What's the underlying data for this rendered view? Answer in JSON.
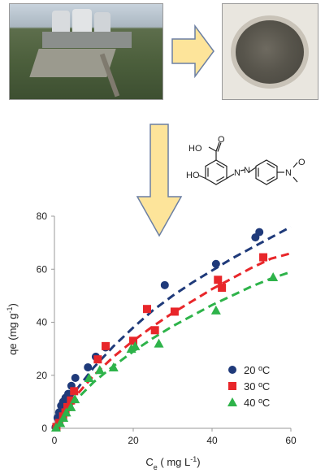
{
  "photos": {
    "plant": "power-plant-aerial-photo",
    "sample": "fly-ash-powder-dish-photo"
  },
  "molecule": {
    "labels": [
      "HO",
      "O",
      "HO",
      "N",
      "N",
      "N",
      "O"
    ],
    "label_text": {
      "oh_acid": "HO",
      "o_carbonyl": "O",
      "oh_phenol": "HO",
      "n_azo1": "N",
      "n_azo2": "N",
      "n_nitro": "N",
      "o_nitro": "O"
    }
  },
  "colors": {
    "arrow_fill": "#fde49a",
    "arrow_stroke": "#6b7fa3",
    "series_20": "#1f3a7a",
    "series_30": "#e8262a",
    "series_40": "#2eb34a"
  },
  "chart_data": {
    "type": "scatter",
    "xlabel": "Ce ( mg L-1)",
    "xlabel_main": "C",
    "xlabel_sub": "e",
    "xlabel_tail": " ( mg L",
    "xlabel_sup": "-1",
    "xlabel_end": ")",
    "ylabel": "qe (mg g-1)",
    "ylabel_main": "qe (mg g",
    "ylabel_sup": "-1",
    "ylabel_end": ")",
    "xlim": [
      0,
      60
    ],
    "ylim": [
      0,
      80
    ],
    "xticks": [
      "0",
      "20",
      "40",
      "60"
    ],
    "yticks": [
      "0",
      "20",
      "40",
      "60",
      "80"
    ],
    "grid": false,
    "legend_position": "bottom-right",
    "series": [
      {
        "name": "20 ºC",
        "marker": "circle",
        "points": [
          [
            0.3,
            0.5
          ],
          [
            0.8,
            4
          ],
          [
            1.2,
            6
          ],
          [
            1.7,
            8.5
          ],
          [
            2.2,
            10
          ],
          [
            2.8,
            11.5
          ],
          [
            3.5,
            13
          ],
          [
            4.3,
            16
          ],
          [
            5.3,
            19
          ],
          [
            8.5,
            23
          ],
          [
            10.5,
            27
          ],
          [
            13,
            30.5
          ],
          [
            28,
            54
          ],
          [
            41,
            62
          ],
          [
            51,
            72
          ],
          [
            52,
            74
          ]
        ],
        "fit": [
          [
            0.5,
            1.5
          ],
          [
            2,
            6
          ],
          [
            5,
            13.5
          ],
          [
            10,
            23
          ],
          [
            15,
            31
          ],
          [
            20,
            38
          ],
          [
            25,
            44.5
          ],
          [
            30,
            50
          ],
          [
            35,
            55
          ],
          [
            40,
            59.5
          ],
          [
            45,
            64
          ],
          [
            50,
            68
          ],
          [
            55,
            72
          ],
          [
            60,
            76
          ]
        ]
      },
      {
        "name": "30 ºC",
        "marker": "square",
        "points": [
          [
            0.5,
            0.5
          ],
          [
            1.2,
            2
          ],
          [
            2.2,
            4.5
          ],
          [
            2.8,
            6
          ],
          [
            3.3,
            8
          ],
          [
            4.2,
            10.5
          ],
          [
            5,
            14
          ],
          [
            11,
            26
          ],
          [
            13,
            31
          ],
          [
            20,
            33
          ],
          [
            23.5,
            45
          ],
          [
            25.5,
            37
          ],
          [
            30.5,
            44
          ],
          [
            41.5,
            56
          ],
          [
            42.5,
            53
          ],
          [
            53,
            64.5
          ]
        ],
        "fit": [
          [
            0.5,
            1.2
          ],
          [
            2,
            5
          ],
          [
            5,
            11.5
          ],
          [
            10,
            20
          ],
          [
            15,
            27
          ],
          [
            20,
            33
          ],
          [
            25,
            38.5
          ],
          [
            30,
            43.5
          ],
          [
            35,
            48
          ],
          [
            40,
            52.5
          ],
          [
            45,
            56.5
          ],
          [
            50,
            60.5
          ],
          [
            55,
            64
          ],
          [
            60,
            66
          ]
        ]
      },
      {
        "name": "40 ºC",
        "marker": "triangle",
        "points": [
          [
            0.4,
            0.3
          ],
          [
            1.5,
            2
          ],
          [
            2.3,
            4
          ],
          [
            3,
            6
          ],
          [
            4.2,
            8
          ],
          [
            5.2,
            11
          ],
          [
            8.8,
            19
          ],
          [
            11.5,
            22
          ],
          [
            15,
            23
          ],
          [
            19.5,
            30
          ],
          [
            20.5,
            31
          ],
          [
            26.5,
            32
          ],
          [
            41,
            44.5
          ],
          [
            55.5,
            57
          ]
        ],
        "fit": [
          [
            0.5,
            1
          ],
          [
            2,
            4.5
          ],
          [
            5,
            10
          ],
          [
            10,
            17.5
          ],
          [
            15,
            23.5
          ],
          [
            20,
            29
          ],
          [
            25,
            34
          ],
          [
            30,
            38.5
          ],
          [
            35,
            42.5
          ],
          [
            40,
            46.5
          ],
          [
            45,
            50
          ],
          [
            50,
            53.5
          ],
          [
            55,
            56.5
          ],
          [
            60,
            59
          ]
        ]
      }
    ]
  }
}
